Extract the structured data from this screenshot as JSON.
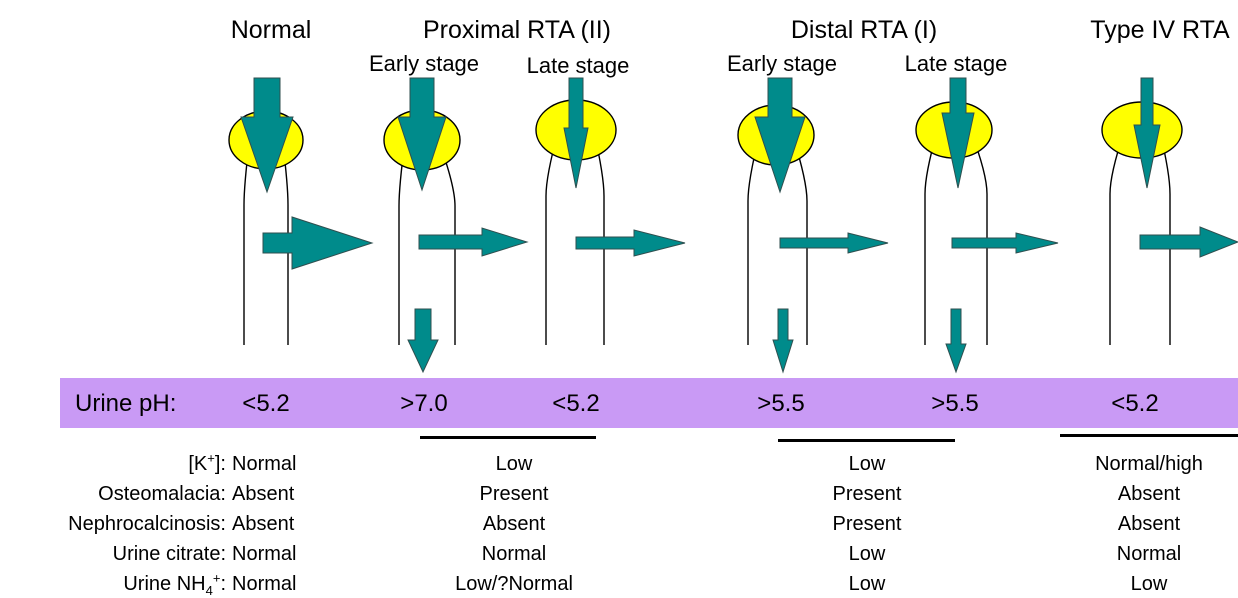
{
  "headers": {
    "normal": "Normal",
    "proximal": "Proximal RTA (II)",
    "distal": "Distal RTA (I)",
    "type4": "Type IV RTA"
  },
  "subheaders": {
    "proximal_early": "Early stage",
    "proximal_late": "Late stage",
    "distal_early": "Early stage",
    "distal_late": "Late stage"
  },
  "ph_band": {
    "label": "Urine pH:",
    "values": [
      "<5.2",
      ">7.0",
      "<5.2",
      ">5.5",
      ">5.5",
      "<5.2"
    ]
  },
  "table": {
    "row_labels": {
      "k": {
        "pre": "[K",
        "sup": "+",
        "post": "]:"
      },
      "osteomalacia": "Osteomalacia:",
      "nephrocalcinosis": "Nephrocalcinosis:",
      "citrate": "Urine citrate:",
      "nh4": {
        "pre": "Urine NH",
        "sub": "4",
        "sup": "+",
        "post": ":"
      }
    },
    "columns": {
      "normal": [
        "Normal",
        "Absent",
        "Absent",
        "Normal",
        "Normal"
      ],
      "proximal": [
        "Low",
        "Present",
        "Absent",
        "Normal",
        "Low/?Normal"
      ],
      "distal": [
        "Low",
        "Present",
        "Present",
        "Low",
        "Low"
      ],
      "type4": [
        "Normal/high",
        "Absent",
        "Absent",
        "Normal",
        "Low"
      ]
    }
  },
  "colors": {
    "arrow_fill": "#008b8b",
    "arrow_stroke": "#2f4f4f",
    "glomerulus": "#ffff00",
    "band": "#c99af5"
  },
  "icons": [
    "glomerulus-icon",
    "tubule-icon",
    "down-arrow-icon",
    "right-arrow-icon"
  ]
}
